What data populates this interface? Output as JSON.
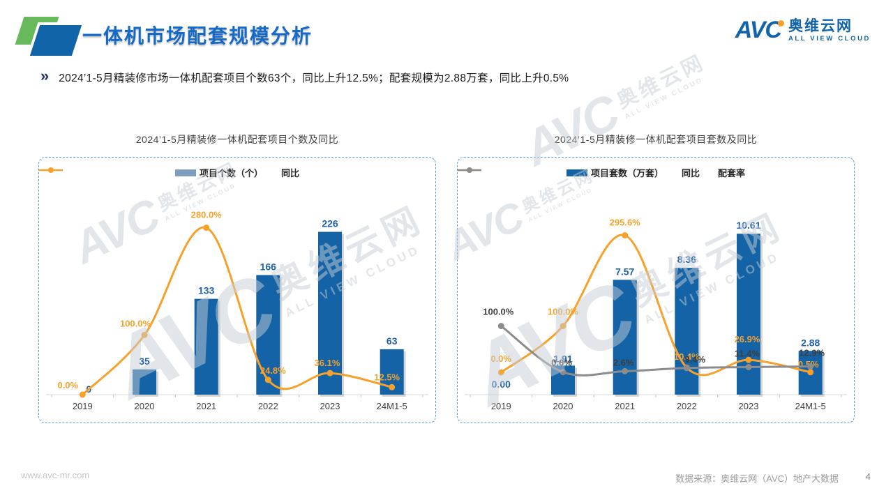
{
  "slide": {
    "title": "一体机市场配套规模分析",
    "page_number": "4"
  },
  "logo": {
    "mark": "AVC",
    "cn": "奥维云网",
    "en": "ALL VIEW CLOUD"
  },
  "bullet": {
    "marker": "»",
    "text": "2024’1-5月精装修市场一体机配套项目个数63个，同比上升12.5%；配套规模为2.88万套，同比上升0.5%"
  },
  "watermark": {
    "mark": "AVC",
    "cn": "奥维云网",
    "en": "ALL VIEW CLOUD"
  },
  "footer": {
    "website": "www.avc-mr.com",
    "source": "数据来源：奥维云网（AVC）地产大数据"
  },
  "chart_data": [
    {
      "type": "bar+line",
      "title": "2024’1-5月精装修一体机配套项目个数及同比",
      "categories": [
        "2019",
        "2020",
        "2021",
        "2022",
        "2023",
        "24M1-5"
      ],
      "grid": false,
      "legend_position": "top",
      "bar_axis": {
        "min": 0,
        "max": 240
      },
      "line_axis": {
        "min": 0,
        "max": 290
      },
      "series": [
        {
          "name": "项目个数（个）",
          "kind": "bar",
          "color": "#1363A6",
          "legend_color": "#7D9EBD",
          "label_color": "#1F62AE",
          "values": [
            0,
            35,
            133,
            166,
            226,
            63
          ],
          "labels": [
            "0",
            "35",
            "133",
            "166",
            "226",
            "63"
          ],
          "label_offsets": [
            [
              9,
              -3
            ],
            [
              0,
              -7
            ],
            [
              0,
              -7
            ],
            [
              0,
              -7
            ],
            [
              0,
              -7
            ],
            [
              0,
              -7
            ]
          ]
        },
        {
          "name": "同比",
          "kind": "line",
          "color": "#F7A12B",
          "label_color": "#F7A12B",
          "values": [
            0.0,
            100.0,
            280.0,
            24.8,
            36.1,
            12.5
          ],
          "labels": [
            "0.0%",
            "100.0%",
            "280.0%",
            "24.8%",
            "36.1%",
            "12.5%"
          ],
          "label_offsets": [
            [
              -21,
              -9
            ],
            [
              -13,
              -12
            ],
            [
              0,
              -14
            ],
            [
              7,
              -9
            ],
            [
              -4,
              -10
            ],
            [
              -7,
              -10
            ]
          ]
        }
      ]
    },
    {
      "type": "bar+line",
      "title": "2024’1-5月精装修一体机配套项目套数及同比",
      "categories": [
        "2019",
        "2020",
        "2021",
        "2022",
        "2023",
        "24M1-5"
      ],
      "grid": false,
      "legend_position": "top",
      "bar_axis": {
        "min": 0,
        "max": 11.4
      },
      "line_axis": {
        "min": -48,
        "max": 325
      },
      "series": [
        {
          "name": "项目套数（万套）",
          "kind": "bar",
          "color": "#1363A6",
          "legend_color": "#1363A6",
          "label_color": "#1F62AE",
          "values": [
            0.0,
            1.91,
            7.57,
            8.36,
            10.61,
            2.88
          ],
          "labels": [
            "0.00",
            "1.91",
            "7.57",
            "8.36",
            "10.61",
            "2.88"
          ],
          "label_offsets": [
            [
              0,
              -10
            ],
            [
              0,
              -5
            ],
            [
              0,
              -7
            ],
            [
              0,
              -7
            ],
            [
              0,
              -7
            ],
            [
              0,
              -7
            ]
          ]
        },
        {
          "name": "同比",
          "kind": "line",
          "color": "#F7A12B",
          "label_color": "#F7A12B",
          "values": [
            0.0,
            100.0,
            295.6,
            10.4,
            26.9,
            0.5
          ],
          "labels": [
            "0.0%",
            "100.0%",
            "295.6%",
            "10.4%",
            "26.9%",
            "0.5%"
          ],
          "label_offsets": [
            [
              0,
              -15
            ],
            [
              0,
              -16
            ],
            [
              0,
              -14
            ],
            [
              0,
              -11
            ],
            [
              -2,
              -25
            ],
            [
              -3,
              -7
            ]
          ]
        },
        {
          "name": "配套率",
          "kind": "line",
          "color": "#8C8C8C",
          "label_color": "#3D3D3D",
          "values": [
            100.0,
            0.6,
            2.6,
            9.4,
            11.4,
            12.9
          ],
          "labels": [
            "100.0%",
            "0.6%",
            "2.6%",
            "9.4%",
            "11.4%",
            "12.9%"
          ],
          "label_offsets": [
            [
              -4,
              -16
            ],
            [
              -2,
              -9
            ],
            [
              -2,
              -8
            ],
            [
              12,
              -8
            ],
            [
              -2,
              -15
            ],
            [
              2,
              -15
            ]
          ]
        }
      ]
    }
  ]
}
